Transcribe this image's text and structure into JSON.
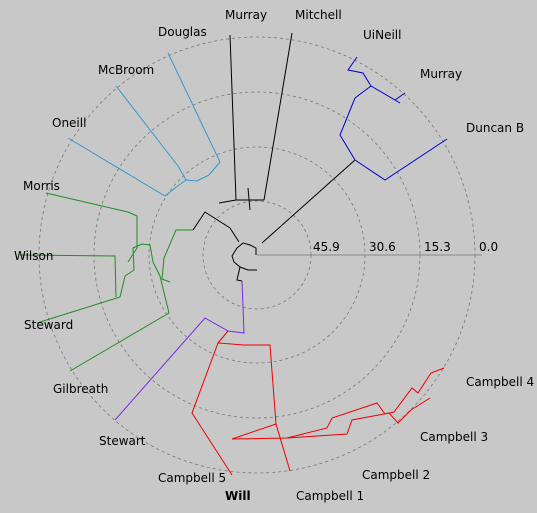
{
  "chart_data": {
    "type": "radial-dendrogram",
    "title": "",
    "scale_ticks": [
      "45.9",
      "30.6",
      "15.3",
      "0.0"
    ],
    "colors": {
      "black": "#000000",
      "blue": "#0000cc",
      "cyan": "#3399cc",
      "green": "#228b22",
      "purple": "#7a2be2",
      "red": "#ee0000",
      "grid": "#777777"
    },
    "leaves": [
      {
        "label": "Murray",
        "clade": "black"
      },
      {
        "label": "Mitchell",
        "clade": "black"
      },
      {
        "label": "UiNeill",
        "clade": "blue"
      },
      {
        "label": "Murray",
        "clade": "blue"
      },
      {
        "label": "Duncan B",
        "clade": "blue"
      },
      {
        "label": "Campbell 4",
        "clade": "red"
      },
      {
        "label": "Campbell 3",
        "clade": "red"
      },
      {
        "label": "Campbell 2",
        "clade": "red"
      },
      {
        "label": "Campbell 1",
        "clade": "red"
      },
      {
        "label": "Will",
        "clade": "red",
        "bold": true
      },
      {
        "label": "Campbell 5",
        "clade": "red"
      },
      {
        "label": "Stewart",
        "clade": "purple"
      },
      {
        "label": "Gilbreath",
        "clade": "green"
      },
      {
        "label": "Steward",
        "clade": "green"
      },
      {
        "label": "Wilson",
        "clade": "green"
      },
      {
        "label": "Morris",
        "clade": "green"
      },
      {
        "label": "Oneill",
        "clade": "cyan"
      },
      {
        "label": "McBroom",
        "clade": "cyan"
      },
      {
        "label": "Douglas",
        "clade": "cyan"
      }
    ]
  }
}
